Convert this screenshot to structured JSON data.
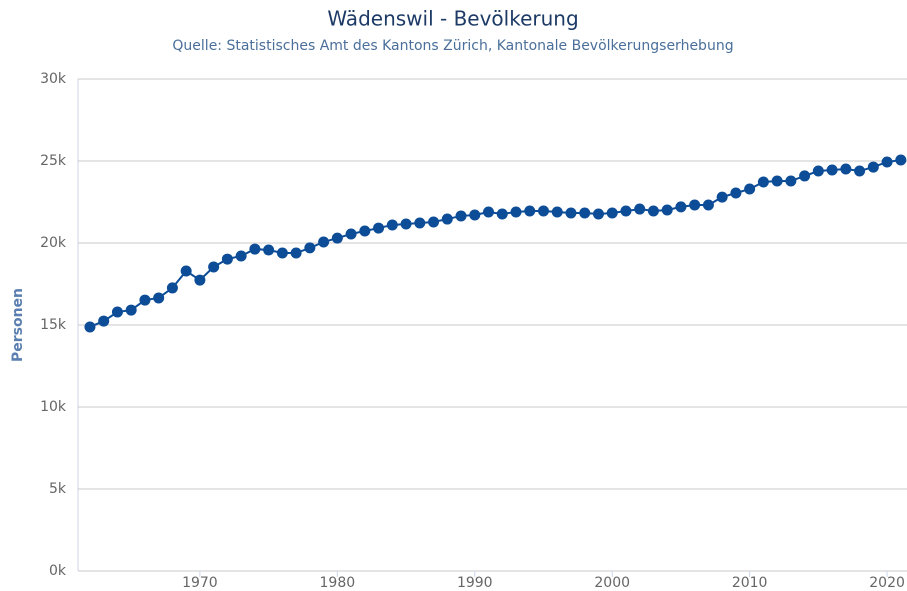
{
  "chart_data": {
    "type": "line",
    "title": "Wädenswil - Bevölkerung",
    "subtitle": "Quelle: Statistisches Amt des Kantons Zürich, Kantonale Bevölkerungserhebung",
    "y_label": "Personen",
    "x": [
      1962,
      1963,
      1964,
      1965,
      1966,
      1967,
      1968,
      1969,
      1970,
      1971,
      1972,
      1973,
      1974,
      1975,
      1976,
      1977,
      1978,
      1979,
      1980,
      1981,
      1982,
      1983,
      1984,
      1985,
      1986,
      1987,
      1988,
      1989,
      1990,
      1991,
      1992,
      1993,
      1994,
      1995,
      1996,
      1997,
      1998,
      1999,
      2000,
      2001,
      2002,
      2003,
      2004,
      2005,
      2006,
      2007,
      2008,
      2009,
      2010,
      2011,
      2012,
      2013,
      2014,
      2015,
      2016,
      2017,
      2018,
      2019,
      2020,
      2021
    ],
    "series": [
      {
        "name": "Personen",
        "color": "#0d4c96",
        "values": [
          14880,
          15240,
          15790,
          15910,
          16520,
          16650,
          17260,
          18290,
          17740,
          18540,
          19020,
          19210,
          19630,
          19570,
          19390,
          19390,
          19700,
          20060,
          20300,
          20550,
          20730,
          20910,
          21100,
          21160,
          21220,
          21280,
          21460,
          21650,
          21710,
          21890,
          21770,
          21890,
          21950,
          21950,
          21890,
          21830,
          21830,
          21770,
          21830,
          21950,
          22070,
          21950,
          22010,
          22200,
          22320,
          22320,
          22800,
          23050,
          23290,
          23720,
          23780,
          23780,
          24090,
          24390,
          24450,
          24510,
          24390,
          24630,
          24940,
          25060
        ]
      }
    ],
    "xlim": [
      1961.13,
      2021.45
    ],
    "xticks": [
      1970,
      1980,
      1990,
      2000,
      2010,
      2020
    ],
    "ylim": [
      0,
      30000
    ],
    "yticks": [
      {
        "value": 0,
        "label": "0k"
      },
      {
        "value": 5000,
        "label": "5k"
      },
      {
        "value": 10000,
        "label": "10k"
      },
      {
        "value": 15000,
        "label": "15k"
      },
      {
        "value": 20000,
        "label": "20k"
      },
      {
        "value": 25000,
        "label": "25k"
      },
      {
        "value": 30000,
        "label": "30k"
      }
    ],
    "grid": true
  }
}
